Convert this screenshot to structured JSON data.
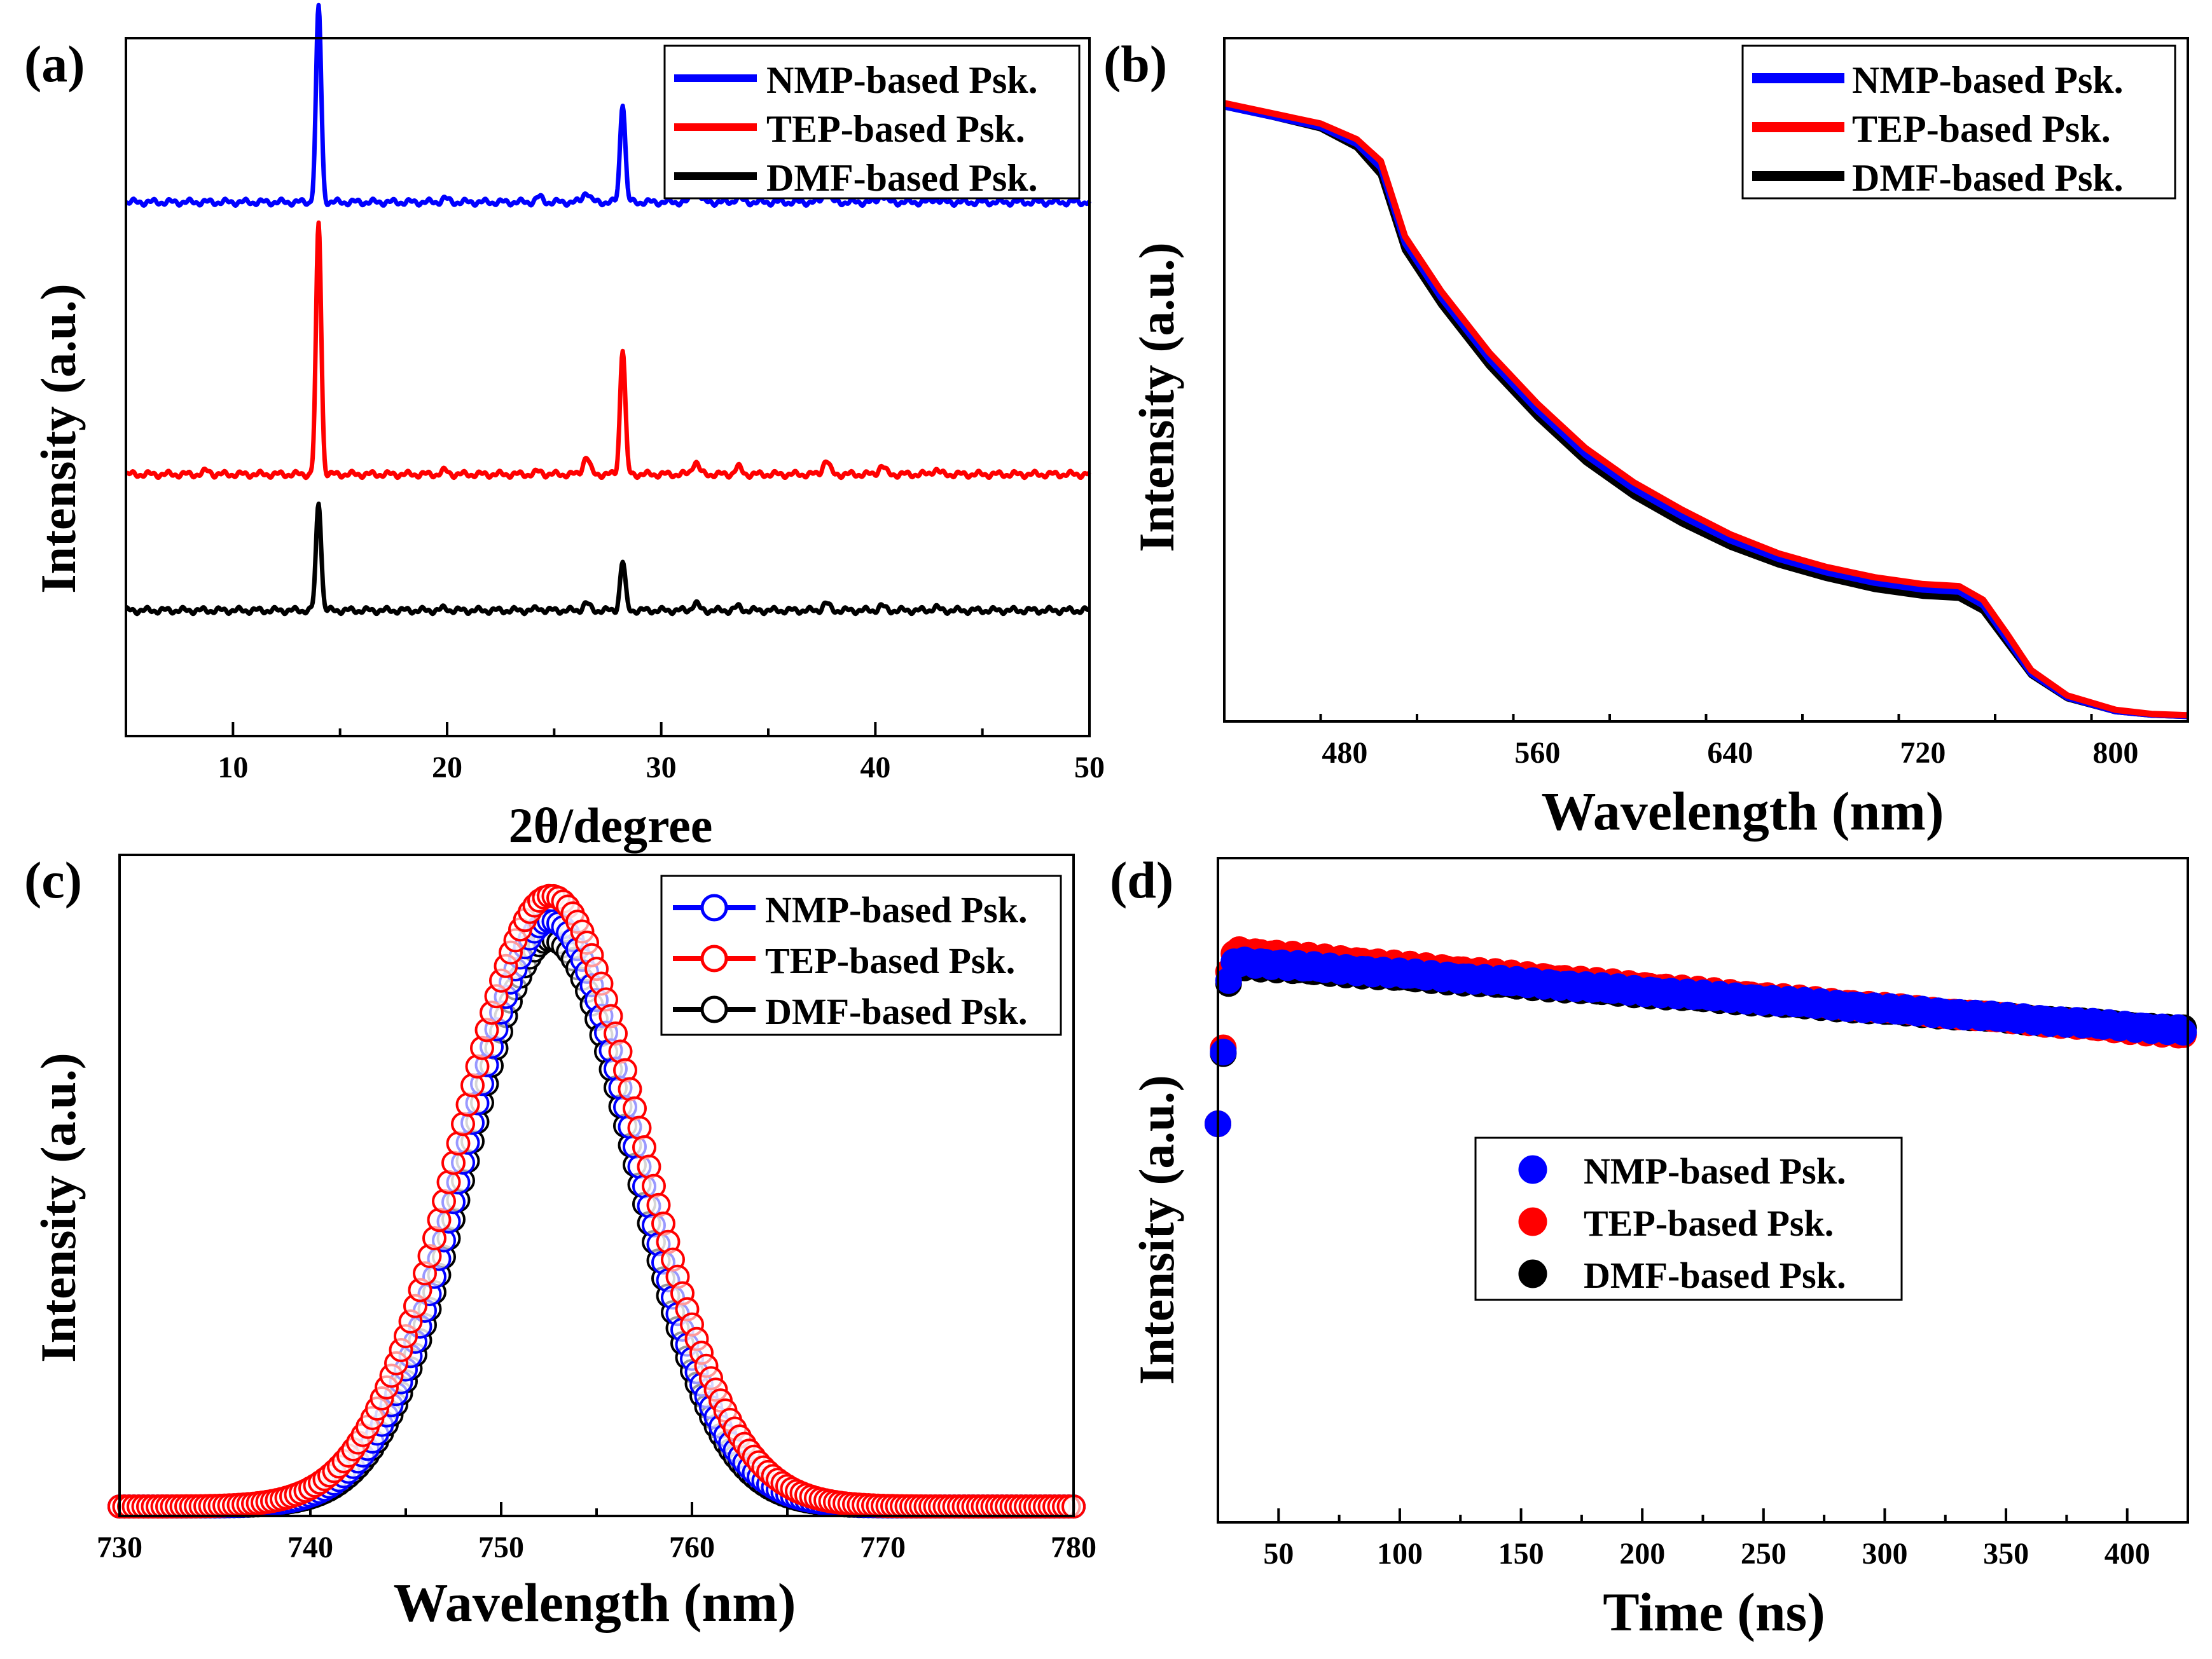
{
  "colors": {
    "NMP": "#0000ff",
    "TEP": "#ff0000",
    "DMF": "#000000"
  },
  "chart_data": [
    {
      "panel": "(a)",
      "type": "line",
      "title": "",
      "xlabel": "2θ/degree",
      "ylabel": "Intensity (a.u.)",
      "xlim": [
        5,
        50
      ],
      "xticks": [
        10,
        20,
        30,
        40,
        50
      ],
      "ylim": [
        0,
        1
      ],
      "yticks_shown": false,
      "legend": "top-right",
      "peaks_2theta": [
        8.8,
        14.0,
        19.9,
        24.3,
        26.5,
        28.2,
        31.6,
        33.6,
        37.7,
        40.3,
        42.8
      ],
      "series": [
        {
          "name": "NMP-based Psk.",
          "color": "#0000ff",
          "baseline": 0.765,
          "peak_heights": [
            0.0,
            0.28,
            0.005,
            0.007,
            0.015,
            0.143,
            0.03,
            0.007,
            0.015,
            0.01,
            0.005
          ]
        },
        {
          "name": "TEP-based Psk.",
          "color": "#ff0000",
          "baseline": 0.375,
          "peak_heights": [
            0.005,
            0.36,
            0.005,
            0.004,
            0.025,
            0.18,
            0.018,
            0.01,
            0.02,
            0.012,
            0.007
          ]
        },
        {
          "name": "DMF-based Psk.",
          "color": "#000000",
          "baseline": 0.18,
          "peak_heights": [
            0.0,
            0.155,
            0.003,
            0.003,
            0.01,
            0.07,
            0.01,
            0.005,
            0.01,
            0.006,
            0.004
          ]
        }
      ]
    },
    {
      "panel": "(b)",
      "type": "line",
      "title": "",
      "xlabel": "Wavelength (nm)",
      "ylabel": "Intensity (a.u.)",
      "xlim": [
        430,
        830
      ],
      "xticks": [
        480,
        560,
        640,
        720,
        800
      ],
      "ylim": [
        0,
        1
      ],
      "yticks_shown": false,
      "legend": "top-right",
      "x": [
        430,
        450,
        470,
        485,
        495,
        505,
        520,
        540,
        560,
        580,
        600,
        620,
        640,
        660,
        680,
        700,
        720,
        735,
        745,
        755,
        765,
        780,
        800,
        815,
        830
      ],
      "series": [
        {
          "name": "NMP-based Psk.",
          "color": "#0000ff",
          "y": [
            0.9,
            0.885,
            0.87,
            0.845,
            0.81,
            0.7,
            0.62,
            0.53,
            0.455,
            0.39,
            0.34,
            0.3,
            0.265,
            0.238,
            0.218,
            0.203,
            0.193,
            0.19,
            0.17,
            0.12,
            0.07,
            0.035,
            0.015,
            0.01,
            0.008
          ]
        },
        {
          "name": "TEP-based Psk.",
          "color": "#ff0000",
          "y": [
            0.905,
            0.89,
            0.875,
            0.852,
            0.82,
            0.71,
            0.63,
            0.54,
            0.465,
            0.4,
            0.35,
            0.31,
            0.274,
            0.246,
            0.226,
            0.211,
            0.201,
            0.198,
            0.178,
            0.128,
            0.075,
            0.038,
            0.017,
            0.011,
            0.009
          ]
        },
        {
          "name": "DMF-based Psk.",
          "color": "#000000",
          "y": [
            0.9,
            0.885,
            0.868,
            0.84,
            0.8,
            0.69,
            0.61,
            0.52,
            0.445,
            0.38,
            0.33,
            0.29,
            0.256,
            0.23,
            0.21,
            0.194,
            0.184,
            0.181,
            0.162,
            0.115,
            0.068,
            0.034,
            0.015,
            0.01,
            0.008
          ]
        }
      ]
    },
    {
      "panel": "(c)",
      "type": "scatter",
      "title": "",
      "xlabel": "Wavelength (nm)",
      "ylabel": "Intensity (a.u.)",
      "xlim": [
        730,
        780
      ],
      "xticks": [
        730,
        740,
        750,
        760,
        770,
        780
      ],
      "ylim": [
        0,
        1.05
      ],
      "yticks_shown": false,
      "legend": "top-right",
      "peak_wavelength_nm": 752.6,
      "series": [
        {
          "name": "NMP-based Psk.",
          "color": "#0000ff",
          "peak": 0.93,
          "fwhm_nm": 10.5
        },
        {
          "name": "TEP-based Psk.",
          "color": "#ff0000",
          "peak": 0.97,
          "fwhm_nm": 11.2
        },
        {
          "name": "DMF-based Psk.",
          "color": "#000000",
          "peak": 0.9,
          "fwhm_nm": 10.3
        }
      ]
    },
    {
      "panel": "(d)",
      "type": "scatter",
      "title": "",
      "xlabel": "Time (ns)",
      "ylabel": "Intensity (a.u.)",
      "xlim": [
        25,
        425
      ],
      "xticks": [
        50,
        100,
        150,
        200,
        250,
        300,
        350,
        400
      ],
      "ylim": [
        0,
        1
      ],
      "yticks_shown": false,
      "legend": "center",
      "rise_time_ns": 30,
      "series": [
        {
          "name": "NMP-based Psk.",
          "color": "#0000ff",
          "start": 0.845,
          "end": 0.74
        },
        {
          "name": "TEP-based Psk.",
          "color": "#ff0000",
          "start": 0.86,
          "end": 0.735
        },
        {
          "name": "DMF-based Psk.",
          "color": "#000000",
          "start": 0.84,
          "end": 0.74
        }
      ]
    }
  ]
}
